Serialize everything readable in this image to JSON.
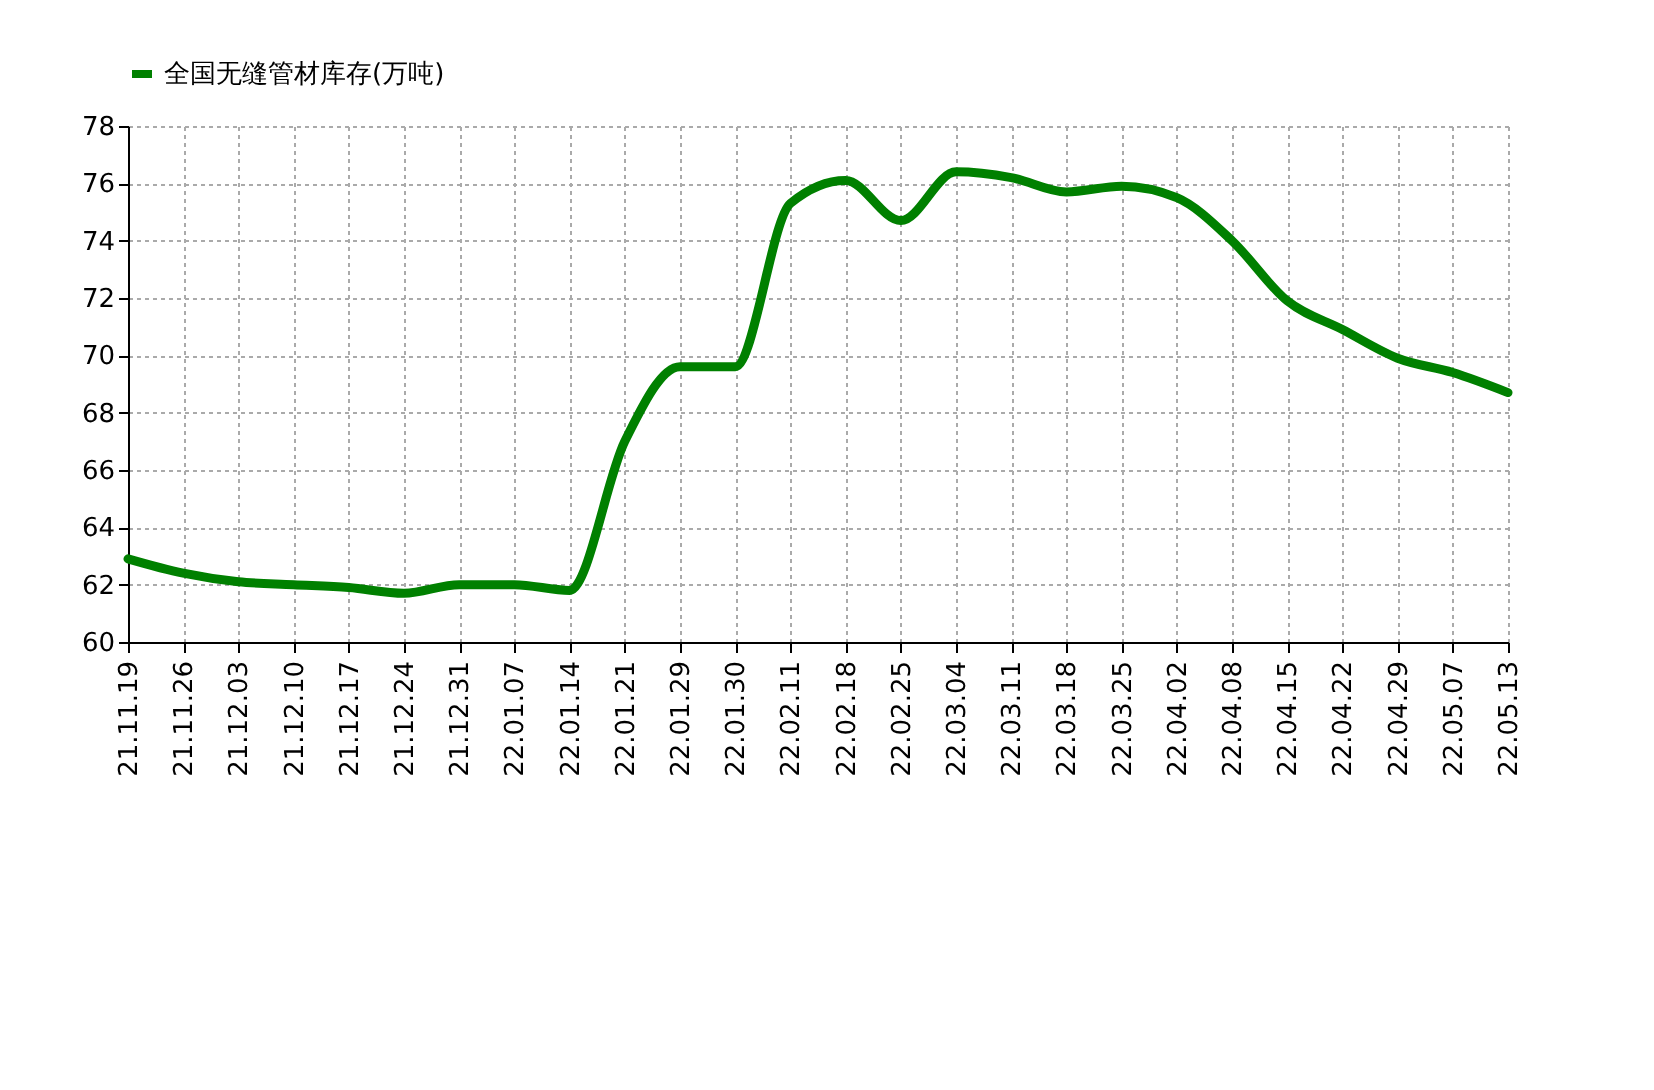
{
  "chart_data": {
    "type": "line",
    "categories": [
      "21.11.19",
      "21.11.26",
      "21.12.03",
      "21.12.10",
      "21.12.17",
      "21.12.24",
      "21.12.31",
      "22.01.07",
      "22.01.14",
      "22.01.21",
      "22.01.29",
      "22.01.30",
      "22.02.11",
      "22.02.18",
      "22.02.25",
      "22.03.04",
      "22.03.11",
      "22.03.18",
      "22.03.25",
      "22.04.02",
      "22.04.08",
      "22.04.15",
      "22.04.22",
      "22.04.29",
      "22.05.07",
      "22.05.13"
    ],
    "series": [
      {
        "name": "全国无缝管材库存(万吨)",
        "color": "#008000",
        "values": [
          62.9,
          62.4,
          62.1,
          62.0,
          61.9,
          61.7,
          62.0,
          62.0,
          61.8,
          67.0,
          69.6,
          69.6,
          75.3,
          76.1,
          74.7,
          76.4,
          76.2,
          75.7,
          75.9,
          75.5,
          74.0,
          71.9,
          70.9,
          69.9,
          69.4,
          68.7
        ]
      }
    ],
    "ylim": [
      60,
      78
    ],
    "yticks": [
      60,
      62,
      64,
      66,
      68,
      70,
      72,
      74,
      76,
      78
    ],
    "grid": true,
    "legend": "top",
    "marker": "none",
    "line_style": "solid"
  }
}
